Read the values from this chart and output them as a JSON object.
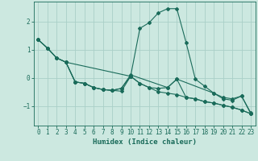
{
  "xlabel": "Humidex (Indice chaleur)",
  "bg_color": "#cce8e0",
  "grid_color": "#aacfc8",
  "line_color": "#1a6b5a",
  "xlim": [
    -0.5,
    23.5
  ],
  "ylim": [
    -1.7,
    2.7
  ],
  "yticks": [
    -1,
    0,
    1,
    2
  ],
  "xticks": [
    0,
    1,
    2,
    3,
    4,
    5,
    6,
    7,
    8,
    9,
    10,
    11,
    12,
    13,
    14,
    15,
    16,
    17,
    18,
    19,
    20,
    21,
    22,
    23
  ],
  "series": [
    {
      "x": [
        0,
        1,
        2,
        3,
        10,
        11,
        12,
        13,
        14,
        15,
        16,
        17,
        18,
        19,
        20,
        21,
        22,
        23
      ],
      "y": [
        1.35,
        1.05,
        0.7,
        0.55,
        0.05,
        1.75,
        1.95,
        2.3,
        2.45,
        2.45,
        1.25,
        -0.05,
        -0.3,
        -0.55,
        -0.75,
        -0.8,
        -0.65,
        -1.25
      ]
    },
    {
      "x": [
        0,
        1,
        2,
        3,
        4,
        5,
        6,
        7,
        8,
        9,
        10,
        11,
        12,
        13,
        14,
        15,
        16,
        17,
        18,
        19,
        20,
        21,
        22,
        23
      ],
      "y": [
        1.35,
        1.05,
        0.7,
        0.55,
        -0.15,
        -0.2,
        -0.35,
        -0.42,
        -0.45,
        -0.48,
        0.05,
        -0.2,
        -0.35,
        -0.5,
        -0.55,
        -0.6,
        -0.7,
        -0.75,
        -0.85,
        -0.9,
        -0.98,
        -1.05,
        -1.15,
        -1.28
      ]
    },
    {
      "x": [
        0,
        1,
        2,
        3,
        4,
        5,
        6,
        7,
        8,
        9,
        10,
        14,
        15,
        19,
        20,
        21,
        22,
        23
      ],
      "y": [
        1.35,
        1.05,
        0.7,
        0.55,
        -0.15,
        -0.2,
        -0.35,
        -0.42,
        -0.45,
        -0.38,
        0.1,
        -0.35,
        -0.05,
        -0.55,
        -0.7,
        -0.75,
        -0.65,
        -1.28
      ]
    },
    {
      "x": [
        3,
        4,
        5,
        6,
        7,
        8,
        9,
        10,
        11,
        12,
        13,
        14,
        15,
        16,
        17,
        18,
        19,
        20,
        21,
        22,
        23
      ],
      "y": [
        0.55,
        -0.15,
        -0.2,
        -0.35,
        -0.42,
        -0.45,
        -0.38,
        0.05,
        -0.2,
        -0.35,
        -0.38,
        -0.35,
        -0.05,
        -0.7,
        -0.75,
        -0.85,
        -0.9,
        -0.98,
        -1.05,
        -1.15,
        -1.28
      ]
    }
  ]
}
